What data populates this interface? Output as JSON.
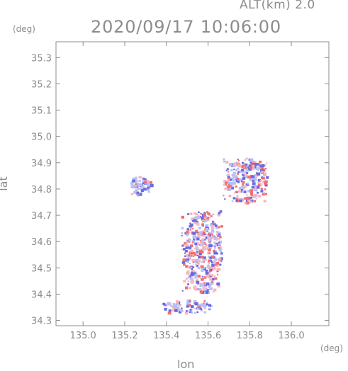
{
  "header": {
    "altitude_label": "ALT(km)  2.0",
    "timestamp": "2020/09/17  10:06:00"
  },
  "axes": {
    "y_unit": "(deg)",
    "x_unit": "(deg)",
    "x_title": "lon",
    "y_title": "lat"
  },
  "chart_data": {
    "type": "heatmap",
    "title": "2020/09/17  10:06:00",
    "subtitle": "ALT(km)  2.0",
    "xlabel": "lon",
    "ylabel": "lat",
    "x_unit": "(deg)",
    "y_unit": "(deg)",
    "xlim": [
      134.87,
      136.18
    ],
    "ylim": [
      34.28,
      35.36
    ],
    "x_ticks": [
      {
        "value": 135.0,
        "label": "135.0"
      },
      {
        "value": 135.2,
        "label": "135.2"
      },
      {
        "value": 135.4,
        "label": "135.4"
      },
      {
        "value": 135.6,
        "label": "135.6"
      },
      {
        "value": 135.8,
        "label": "135.8"
      },
      {
        "value": 136.0,
        "label": "136.0"
      }
    ],
    "y_ticks": [
      {
        "value": 34.3,
        "label": "34.3"
      },
      {
        "value": 34.4,
        "label": "34.4"
      },
      {
        "value": 34.5,
        "label": "34.5"
      },
      {
        "value": 34.6,
        "label": "34.6"
      },
      {
        "value": 34.7,
        "label": "34.7"
      },
      {
        "value": 34.8,
        "label": "34.8"
      },
      {
        "value": 34.9,
        "label": "34.9"
      },
      {
        "value": 35.0,
        "label": "35.0"
      },
      {
        "value": 35.1,
        "label": "35.1"
      },
      {
        "value": 35.2,
        "label": "35.2"
      },
      {
        "value": 35.3,
        "label": "35.3"
      }
    ],
    "grid": false,
    "colors": {
      "positive": "#f07070",
      "positive_light": "#f8b8c0",
      "negative": "#6a6ae0",
      "negative_light": "#b8c0f4",
      "axis": "#8c8c8c"
    },
    "regions": [
      {
        "name": "western-cluster",
        "lon": [
          135.22,
          135.33
        ],
        "lat": [
          34.78,
          34.85
        ],
        "sign": "mixed-negative"
      },
      {
        "name": "north-cluster",
        "lon": [
          135.67,
          135.88
        ],
        "lat": [
          34.75,
          34.92
        ],
        "sign": "mixed"
      },
      {
        "name": "central-band",
        "lon": [
          135.47,
          135.66
        ],
        "lat": [
          34.41,
          34.72
        ],
        "sign": "mixed"
      },
      {
        "name": "southern-strip",
        "lon": [
          135.38,
          135.62
        ],
        "lat": [
          34.33,
          34.38
        ],
        "sign": "mixed-negative"
      }
    ]
  }
}
